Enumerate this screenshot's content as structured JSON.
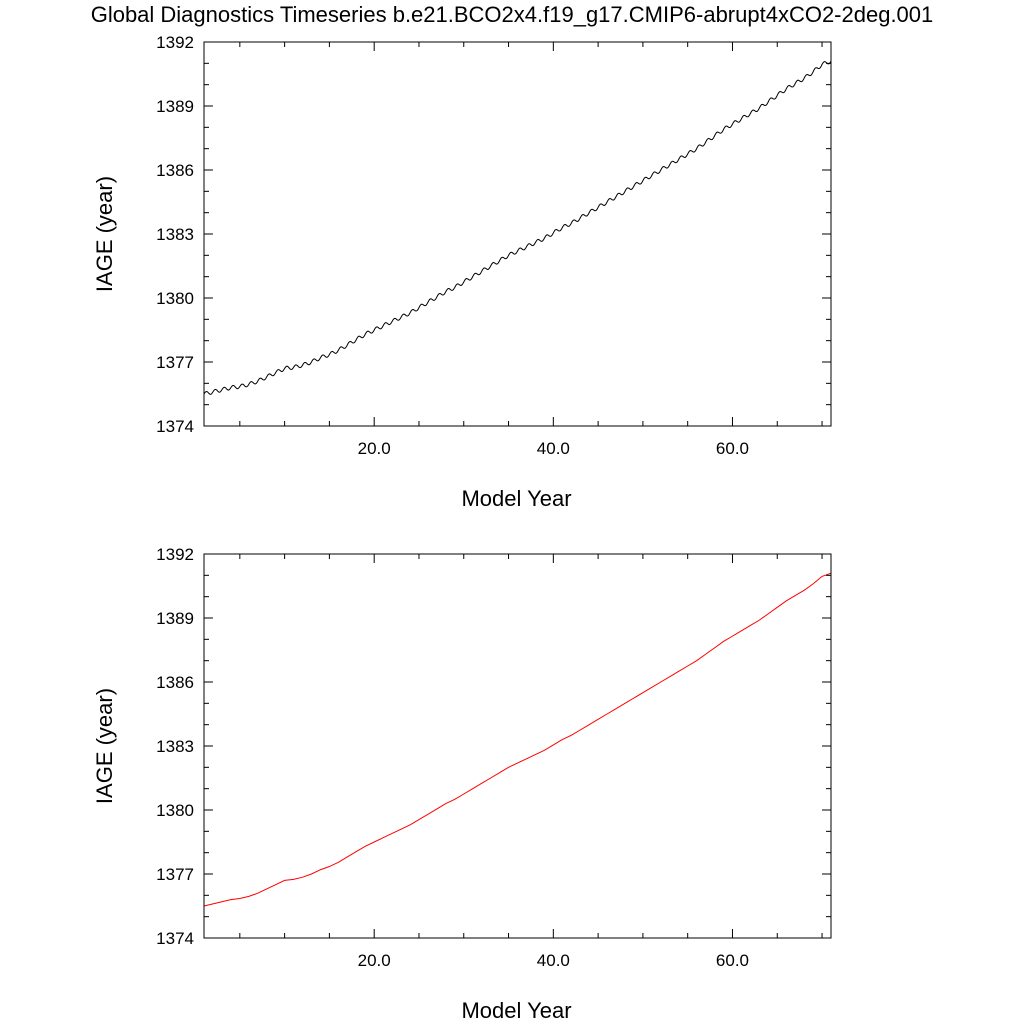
{
  "title": "Global Diagnostics Timeseries b.e21.BCO2x4.f19_g17.CMIP6-abrupt4xCO2-2deg.001",
  "colors": {
    "raw": "#000000",
    "smoothed": "#ff0000",
    "frame": "#000000"
  },
  "chart_data": [
    {
      "type": "line",
      "xlabel": "Model Year",
      "ylabel": "IAGE (year)",
      "xlim": [
        1,
        71
      ],
      "ylim": [
        1374,
        1392
      ],
      "xticks": [
        20,
        40,
        60
      ],
      "xtick_labels": [
        "20.0",
        "40.0",
        "60.0"
      ],
      "yticks": [
        1374,
        1377,
        1380,
        1383,
        1386,
        1389,
        1392
      ],
      "ytick_labels": [
        "1374",
        "1377",
        "1380",
        "1383",
        "1386",
        "1389",
        "1392"
      ],
      "grid": false,
      "series": [
        {
          "color": "#000000",
          "seasonal_cycle": true,
          "x": [
            1,
            2,
            3,
            4,
            5,
            6,
            7,
            8,
            9,
            10,
            11,
            12,
            13,
            14,
            15,
            16,
            17,
            18,
            19,
            20,
            21,
            22,
            23,
            24,
            25,
            26,
            27,
            28,
            29,
            30,
            31,
            32,
            33,
            34,
            35,
            36,
            37,
            38,
            39,
            40,
            41,
            42,
            43,
            44,
            45,
            46,
            47,
            48,
            49,
            50,
            51,
            52,
            53,
            54,
            55,
            56,
            57,
            58,
            59,
            60,
            61,
            62,
            63,
            64,
            65,
            66,
            67,
            68,
            69,
            70,
            71
          ],
          "values": [
            1375.5,
            1375.6,
            1375.7,
            1375.8,
            1375.85,
            1375.95,
            1376.1,
            1376.3,
            1376.5,
            1376.7,
            1376.75,
            1376.85,
            1377.0,
            1377.2,
            1377.35,
            1377.55,
            1377.8,
            1378.05,
            1378.3,
            1378.5,
            1378.7,
            1378.9,
            1379.1,
            1379.3,
            1379.55,
            1379.8,
            1380.05,
            1380.3,
            1380.5,
            1380.75,
            1381.0,
            1381.25,
            1381.5,
            1381.75,
            1382.0,
            1382.2,
            1382.4,
            1382.6,
            1382.8,
            1383.05,
            1383.3,
            1383.5,
            1383.75,
            1384.0,
            1384.25,
            1384.5,
            1384.75,
            1385.0,
            1385.25,
            1385.5,
            1385.75,
            1386.0,
            1386.25,
            1386.5,
            1386.75,
            1387.0,
            1387.3,
            1387.6,
            1387.9,
            1388.15,
            1388.4,
            1388.65,
            1388.9,
            1389.2,
            1389.5,
            1389.8,
            1390.05,
            1390.3,
            1390.6,
            1390.95,
            1391.1
          ]
        }
      ]
    },
    {
      "type": "line",
      "xlabel": "Model Year",
      "ylabel": "IAGE (year)",
      "xlim": [
        1,
        71
      ],
      "ylim": [
        1374,
        1392
      ],
      "xticks": [
        20,
        40,
        60
      ],
      "xtick_labels": [
        "20.0",
        "40.0",
        "60.0"
      ],
      "yticks": [
        1374,
        1377,
        1380,
        1383,
        1386,
        1389,
        1392
      ],
      "ytick_labels": [
        "1374",
        "1377",
        "1380",
        "1383",
        "1386",
        "1389",
        "1392"
      ],
      "grid": false,
      "series": [
        {
          "color": "#ff0000",
          "seasonal_cycle": false,
          "x": [
            1,
            2,
            3,
            4,
            5,
            6,
            7,
            8,
            9,
            10,
            11,
            12,
            13,
            14,
            15,
            16,
            17,
            18,
            19,
            20,
            21,
            22,
            23,
            24,
            25,
            26,
            27,
            28,
            29,
            30,
            31,
            32,
            33,
            34,
            35,
            36,
            37,
            38,
            39,
            40,
            41,
            42,
            43,
            44,
            45,
            46,
            47,
            48,
            49,
            50,
            51,
            52,
            53,
            54,
            55,
            56,
            57,
            58,
            59,
            60,
            61,
            62,
            63,
            64,
            65,
            66,
            67,
            68,
            69,
            70,
            71
          ],
          "values": [
            1375.5,
            1375.6,
            1375.7,
            1375.8,
            1375.85,
            1375.95,
            1376.1,
            1376.3,
            1376.5,
            1376.7,
            1376.75,
            1376.85,
            1377.0,
            1377.2,
            1377.35,
            1377.55,
            1377.8,
            1378.05,
            1378.3,
            1378.5,
            1378.7,
            1378.9,
            1379.1,
            1379.3,
            1379.55,
            1379.8,
            1380.05,
            1380.3,
            1380.5,
            1380.75,
            1381.0,
            1381.25,
            1381.5,
            1381.75,
            1382.0,
            1382.2,
            1382.4,
            1382.6,
            1382.8,
            1383.05,
            1383.3,
            1383.5,
            1383.75,
            1384.0,
            1384.25,
            1384.5,
            1384.75,
            1385.0,
            1385.25,
            1385.5,
            1385.75,
            1386.0,
            1386.25,
            1386.5,
            1386.75,
            1387.0,
            1387.3,
            1387.6,
            1387.9,
            1388.15,
            1388.4,
            1388.65,
            1388.9,
            1389.2,
            1389.5,
            1389.8,
            1390.05,
            1390.3,
            1390.6,
            1390.95,
            1391.1
          ]
        }
      ]
    }
  ]
}
